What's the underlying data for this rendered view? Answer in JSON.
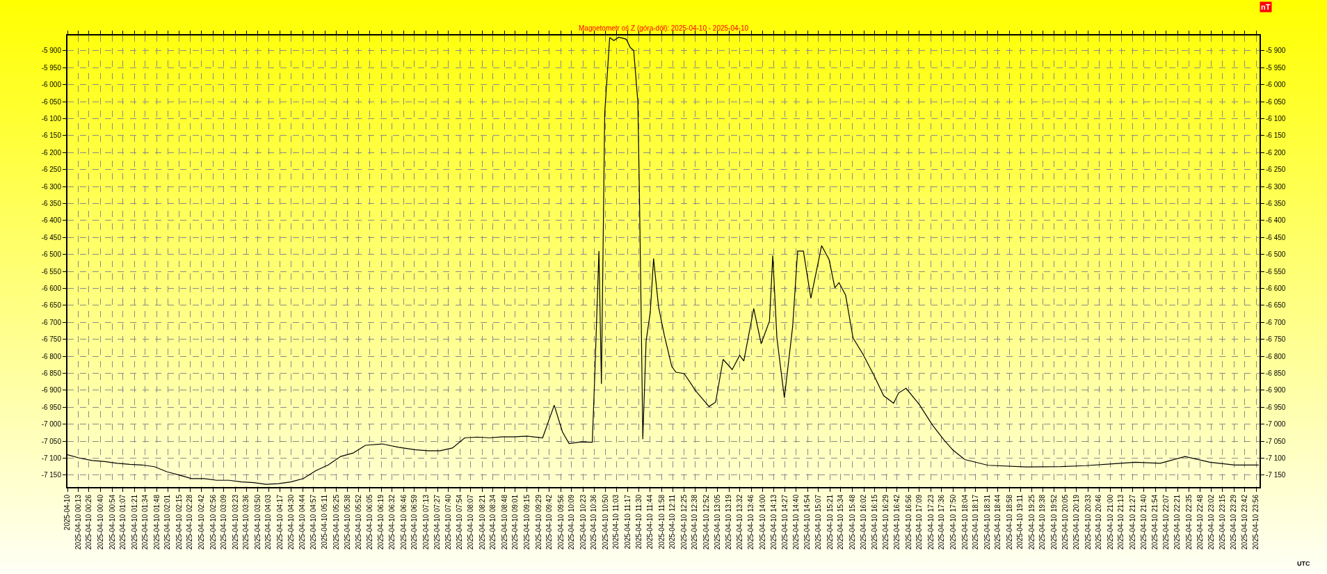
{
  "chart_data": {
    "type": "line",
    "title": "Magnetometr oś Z (góra-dół): 2025-04-10 - 2025-04-10",
    "y2label": "nT",
    "xlabel": "UTC",
    "grid": true,
    "line_style": "solid",
    "x": [
      "2025-04-10T00:00",
      "2025-04-10T00:15",
      "2025-04-10T00:30",
      "2025-04-10T00:45",
      "2025-04-10T01:00",
      "2025-04-10T01:15",
      "2025-04-10T01:30",
      "2025-04-10T01:45",
      "2025-04-10T02:00",
      "2025-04-10T02:15",
      "2025-04-10T02:30",
      "2025-04-10T02:45",
      "2025-04-10T03:00",
      "2025-04-10T03:15",
      "2025-04-10T03:30",
      "2025-04-10T03:45",
      "2025-04-10T04:00",
      "2025-04-10T04:15",
      "2025-04-10T04:30",
      "2025-04-10T04:45",
      "2025-04-10T05:00",
      "2025-04-10T05:15",
      "2025-04-10T05:30",
      "2025-04-10T05:45",
      "2025-04-10T06:00",
      "2025-04-10T06:20",
      "2025-04-10T06:40",
      "2025-04-10T07:00",
      "2025-04-10T07:15",
      "2025-04-10T07:30",
      "2025-04-10T07:45",
      "2025-04-10T08:00",
      "2025-04-10T08:15",
      "2025-04-10T08:30",
      "2025-04-10T08:45",
      "2025-04-10T09:00",
      "2025-04-10T09:15",
      "2025-04-10T09:34",
      "2025-04-10T09:48",
      "2025-04-10T09:58",
      "2025-04-10T10:06",
      "2025-04-10T10:20",
      "2025-04-10T10:34",
      "2025-04-10T10:37",
      "2025-04-10T10:42",
      "2025-04-10T10:45",
      "2025-04-10T10:49",
      "2025-04-10T10:55",
      "2025-04-10T11:00",
      "2025-04-10T11:06",
      "2025-04-10T11:15",
      "2025-04-10T11:20",
      "2025-04-10T11:24",
      "2025-04-10T11:29",
      "2025-04-10T11:31",
      "2025-04-10T11:33",
      "2025-04-10T11:35",
      "2025-04-10T11:39",
      "2025-04-10T11:44",
      "2025-04-10T11:48",
      "2025-04-10T11:54",
      "2025-04-10T12:01",
      "2025-04-10T12:10",
      "2025-04-10T12:15",
      "2025-04-10T12:25",
      "2025-04-10T12:39",
      "2025-04-10T12:55",
      "2025-04-10T13:03",
      "2025-04-10T13:12",
      "2025-04-10T13:23",
      "2025-04-10T13:32",
      "2025-04-10T13:37",
      "2025-04-10T13:49",
      "2025-04-10T13:58",
      "2025-04-10T14:08",
      "2025-04-10T14:12",
      "2025-04-10T14:17",
      "2025-04-10T14:26",
      "2025-04-10T14:36",
      "2025-04-10T14:42",
      "2025-04-10T14:49",
      "2025-04-10T14:58",
      "2025-04-10T15:11",
      "2025-04-10T15:20",
      "2025-04-10T15:27",
      "2025-04-10T15:32",
      "2025-04-10T15:40",
      "2025-04-10T15:49",
      "2025-04-10T16:01",
      "2025-04-10T16:14",
      "2025-04-10T16:26",
      "2025-04-10T16:38",
      "2025-04-10T16:44",
      "2025-04-10T16:53",
      "2025-04-10T17:09",
      "2025-04-10T17:25",
      "2025-04-10T17:39",
      "2025-04-10T17:50",
      "2025-04-10T18:04",
      "2025-04-10T18:32",
      "2025-04-10T19:19",
      "2025-04-10T20:00",
      "2025-04-10T20:30",
      "2025-04-10T21:00",
      "2025-04-10T21:30",
      "2025-04-10T22:00",
      "2025-04-10T22:30",
      "2025-04-10T23:00",
      "2025-04-10T23:30",
      "2025-04-10T23:59"
    ],
    "series": [
      {
        "color": "#000000",
        "values": [
          -7090,
          -7100,
          -7107,
          -7110,
          -7115,
          -7118,
          -7120,
          -7125,
          -7140,
          -7150,
          -7160,
          -7160,
          -7165,
          -7165,
          -7170,
          -7172,
          -7177,
          -7175,
          -7170,
          -7160,
          -7137,
          -7120,
          -7095,
          -7085,
          -7062,
          -7058,
          -7068,
          -7075,
          -7078,
          -7078,
          -7070,
          -7040,
          -7038,
          -7040,
          -7037,
          -7037,
          -7035,
          -7040,
          -6944,
          -7023,
          -7057,
          -7052,
          -7053,
          -6855,
          -6490,
          -6881,
          -6084,
          -5861,
          -5870,
          -5860,
          -5866,
          -5891,
          -5899,
          -6050,
          -6335,
          -6671,
          -7044,
          -6755,
          -6671,
          -6512,
          -6654,
          -6738,
          -6830,
          -6847,
          -6851,
          -6902,
          -6948,
          -6935,
          -6809,
          -6839,
          -6797,
          -6814,
          -6659,
          -6763,
          -6696,
          -6503,
          -6746,
          -6922,
          -6713,
          -6490,
          -6490,
          -6629,
          -6474,
          -6515,
          -6598,
          -6583,
          -6620,
          -6746,
          -6794,
          -6855,
          -6916,
          -6938,
          -6908,
          -6894,
          -6942,
          -7003,
          -7047,
          -7077,
          -7104,
          -7121,
          -7126,
          -7125,
          -7122,
          -7117,
          -7112,
          -7115,
          -7095,
          -7112,
          -7120,
          -7120
        ]
      }
    ],
    "xlim": [
      "2025-04-10T00:00",
      "2025-04-11T00:00"
    ],
    "xticks": [
      {
        "value": "2025-04-10T00:00",
        "label": "2025-04-10"
      },
      {
        "value": "2025-04-10T00:13",
        "label": "2025-04-10 00:13"
      },
      {
        "value": "2025-04-10T00:26",
        "label": "2025-04-10 00:26"
      },
      {
        "value": "2025-04-10T00:40",
        "label": "2025-04-10 00:40"
      },
      {
        "value": "2025-04-10T00:54",
        "label": "2025-04-10 00:54"
      },
      {
        "value": "2025-04-10T01:07",
        "label": "2025-04-10 01:07"
      },
      {
        "value": "2025-04-10T01:21",
        "label": "2025-04-10 01:21"
      },
      {
        "value": "2025-04-10T01:34",
        "label": "2025-04-10 01:34"
      },
      {
        "value": "2025-04-10T01:48",
        "label": "2025-04-10 01:48"
      },
      {
        "value": "2025-04-10T02:01",
        "label": "2025-04-10 02:01"
      },
      {
        "value": "2025-04-10T02:15",
        "label": "2025-04-10 02:15"
      },
      {
        "value": "2025-04-10T02:28",
        "label": "2025-04-10 02:28"
      },
      {
        "value": "2025-04-10T02:42",
        "label": "2025-04-10 02:42"
      },
      {
        "value": "2025-04-10T02:56",
        "label": "2025-04-10 02:56"
      },
      {
        "value": "2025-04-10T03:09",
        "label": "2025-04-10 03:09"
      },
      {
        "value": "2025-04-10T03:23",
        "label": "2025-04-10 03:23"
      },
      {
        "value": "2025-04-10T03:36",
        "label": "2025-04-10 03:36"
      },
      {
        "value": "2025-04-10T03:50",
        "label": "2025-04-10 03:50"
      },
      {
        "value": "2025-04-10T04:03",
        "label": "2025-04-10 04:03"
      },
      {
        "value": "2025-04-10T04:17",
        "label": "2025-04-10 04:17"
      },
      {
        "value": "2025-04-10T04:30",
        "label": "2025-04-10 04:30"
      },
      {
        "value": "2025-04-10T04:44",
        "label": "2025-04-10 04:44"
      },
      {
        "value": "2025-04-10T04:57",
        "label": "2025-04-10 04:57"
      },
      {
        "value": "2025-04-10T05:11",
        "label": "2025-04-10 05:11"
      },
      {
        "value": "2025-04-10T05:25",
        "label": "2025-04-10 05:25"
      },
      {
        "value": "2025-04-10T05:38",
        "label": "2025-04-10 05:38"
      },
      {
        "value": "2025-04-10T05:52",
        "label": "2025-04-10 05:52"
      },
      {
        "value": "2025-04-10T06:05",
        "label": "2025-04-10 06:05"
      },
      {
        "value": "2025-04-10T06:19",
        "label": "2025-04-10 06:19"
      },
      {
        "value": "2025-04-10T06:32",
        "label": "2025-04-10 06:32"
      },
      {
        "value": "2025-04-10T06:46",
        "label": "2025-04-10 06:46"
      },
      {
        "value": "2025-04-10T06:59",
        "label": "2025-04-10 06:59"
      },
      {
        "value": "2025-04-10T07:13",
        "label": "2025-04-10 07:13"
      },
      {
        "value": "2025-04-10T07:27",
        "label": "2025-04-10 07:27"
      },
      {
        "value": "2025-04-10T07:40",
        "label": "2025-04-10 07:40"
      },
      {
        "value": "2025-04-10T07:54",
        "label": "2025-04-10 07:54"
      },
      {
        "value": "2025-04-10T08:07",
        "label": "2025-04-10 08:07"
      },
      {
        "value": "2025-04-10T08:21",
        "label": "2025-04-10 08:21"
      },
      {
        "value": "2025-04-10T08:34",
        "label": "2025-04-10 08:34"
      },
      {
        "value": "2025-04-10T08:48",
        "label": "2025-04-10 08:48"
      },
      {
        "value": "2025-04-10T09:01",
        "label": "2025-04-10 09:01"
      },
      {
        "value": "2025-04-10T09:15",
        "label": "2025-04-10 09:15"
      },
      {
        "value": "2025-04-10T09:29",
        "label": "2025-04-10 09:29"
      },
      {
        "value": "2025-04-10T09:42",
        "label": "2025-04-10 09:42"
      },
      {
        "value": "2025-04-10T09:56",
        "label": "2025-04-10 09:56"
      },
      {
        "value": "2025-04-10T10:09",
        "label": "2025-04-10 10:09"
      },
      {
        "value": "2025-04-10T10:23",
        "label": "2025-04-10 10:23"
      },
      {
        "value": "2025-04-10T10:36",
        "label": "2025-04-10 10:36"
      },
      {
        "value": "2025-04-10T10:50",
        "label": "2025-04-10 10:50"
      },
      {
        "value": "2025-04-10T11:03",
        "label": "2025-04-10 11:03"
      },
      {
        "value": "2025-04-10T11:17",
        "label": "2025-04-10 11:17"
      },
      {
        "value": "2025-04-10T11:30",
        "label": "2025-04-10 11:30"
      },
      {
        "value": "2025-04-10T11:44",
        "label": "2025-04-10 11:44"
      },
      {
        "value": "2025-04-10T11:58",
        "label": "2025-04-10 11:58"
      },
      {
        "value": "2025-04-10T12:11",
        "label": "2025-04-10 12:11"
      },
      {
        "value": "2025-04-10T12:25",
        "label": "2025-04-10 12:25"
      },
      {
        "value": "2025-04-10T12:38",
        "label": "2025-04-10 12:38"
      },
      {
        "value": "2025-04-10T12:52",
        "label": "2025-04-10 12:52"
      },
      {
        "value": "2025-04-10T13:05",
        "label": "2025-04-10 13:05"
      },
      {
        "value": "2025-04-10T13:19",
        "label": "2025-04-10 13:19"
      },
      {
        "value": "2025-04-10T13:32",
        "label": "2025-04-10 13:32"
      },
      {
        "value": "2025-04-10T13:46",
        "label": "2025-04-10 13:46"
      },
      {
        "value": "2025-04-10T14:00",
        "label": "2025-04-10 14:00"
      },
      {
        "value": "2025-04-10T14:13",
        "label": "2025-04-10 14:13"
      },
      {
        "value": "2025-04-10T14:27",
        "label": "2025-04-10 14:27"
      },
      {
        "value": "2025-04-10T14:40",
        "label": "2025-04-10 14:40"
      },
      {
        "value": "2025-04-10T14:54",
        "label": "2025-04-10 14:54"
      },
      {
        "value": "2025-04-10T15:07",
        "label": "2025-04-10 15:07"
      },
      {
        "value": "2025-04-10T15:21",
        "label": "2025-04-10 15:21"
      },
      {
        "value": "2025-04-10T15:34",
        "label": "2025-04-10 15:34"
      },
      {
        "value": "2025-04-10T15:48",
        "label": "2025-04-10 15:48"
      },
      {
        "value": "2025-04-10T16:02",
        "label": "2025-04-10 16:02"
      },
      {
        "value": "2025-04-10T16:15",
        "label": "2025-04-10 16:15"
      },
      {
        "value": "2025-04-10T16:29",
        "label": "2025-04-10 16:29"
      },
      {
        "value": "2025-04-10T16:42",
        "label": "2025-04-10 16:42"
      },
      {
        "value": "2025-04-10T16:56",
        "label": "2025-04-10 16:56"
      },
      {
        "value": "2025-04-10T17:09",
        "label": "2025-04-10 17:09"
      },
      {
        "value": "2025-04-10T17:23",
        "label": "2025-04-10 17:23"
      },
      {
        "value": "2025-04-10T17:36",
        "label": "2025-04-10 17:36"
      },
      {
        "value": "2025-04-10T17:50",
        "label": "2025-04-10 17:50"
      },
      {
        "value": "2025-04-10T18:04",
        "label": "2025-04-10 18:04"
      },
      {
        "value": "2025-04-10T18:17",
        "label": "2025-04-10 18:17"
      },
      {
        "value": "2025-04-10T18:31",
        "label": "2025-04-10 18:31"
      },
      {
        "value": "2025-04-10T18:44",
        "label": "2025-04-10 18:44"
      },
      {
        "value": "2025-04-10T18:58",
        "label": "2025-04-10 18:58"
      },
      {
        "value": "2025-04-10T19:11",
        "label": "2025-04-10 19:11"
      },
      {
        "value": "2025-04-10T19:25",
        "label": "2025-04-10 19:25"
      },
      {
        "value": "2025-04-10T19:38",
        "label": "2025-04-10 19:38"
      },
      {
        "value": "2025-04-10T19:52",
        "label": "2025-04-10 19:52"
      },
      {
        "value": "2025-04-10T20:05",
        "label": "2025-04-10 20:05"
      },
      {
        "value": "2025-04-10T20:19",
        "label": "2025-04-10 20:19"
      },
      {
        "value": "2025-04-10T20:33",
        "label": "2025-04-10 20:33"
      },
      {
        "value": "2025-04-10T20:46",
        "label": "2025-04-10 20:46"
      },
      {
        "value": "2025-04-10T21:00",
        "label": "2025-04-10 21:00"
      },
      {
        "value": "2025-04-10T21:13",
        "label": "2025-04-10 21:13"
      },
      {
        "value": "2025-04-10T21:27",
        "label": "2025-04-10 21:27"
      },
      {
        "value": "2025-04-10T21:40",
        "label": "2025-04-10 21:40"
      },
      {
        "value": "2025-04-10T21:54",
        "label": "2025-04-10 21:54"
      },
      {
        "value": "2025-04-10T22:07",
        "label": "2025-04-10 22:07"
      },
      {
        "value": "2025-04-10T22:21",
        "label": "2025-04-10 22:21"
      },
      {
        "value": "2025-04-10T22:35",
        "label": "2025-04-10 22:35"
      },
      {
        "value": "2025-04-10T22:48",
        "label": "2025-04-10 22:48"
      },
      {
        "value": "2025-04-10T23:02",
        "label": "2025-04-10 23:02"
      },
      {
        "value": "2025-04-10T23:15",
        "label": "2025-04-10 23:15"
      },
      {
        "value": "2025-04-10T23:29",
        "label": "2025-04-10 23:29"
      },
      {
        "value": "2025-04-10T23:42",
        "label": "2025-04-10 23:42"
      },
      {
        "value": "2025-04-10T23:56",
        "label": "2025-04-10 23:56"
      }
    ],
    "ylim": [
      -7185,
      -5855
    ],
    "yticks": [
      {
        "value": -5900,
        "label": "-5 900"
      },
      {
        "value": -5950,
        "label": "-5 950"
      },
      {
        "value": -6000,
        "label": "-6 000"
      },
      {
        "value": -6050,
        "label": "-6 050"
      },
      {
        "value": -6100,
        "label": "-6 100"
      },
      {
        "value": -6150,
        "label": "-6 150"
      },
      {
        "value": -6200,
        "label": "-6 200"
      },
      {
        "value": -6250,
        "label": "-6 250"
      },
      {
        "value": -6300,
        "label": "-6 300"
      },
      {
        "value": -6350,
        "label": "-6 350"
      },
      {
        "value": -6400,
        "label": "-6 400"
      },
      {
        "value": -6450,
        "label": "-6 450"
      },
      {
        "value": -6500,
        "label": "-6 500"
      },
      {
        "value": -6550,
        "label": "-6 550"
      },
      {
        "value": -6600,
        "label": "-6 600"
      },
      {
        "value": -6650,
        "label": "-6 650"
      },
      {
        "value": -6700,
        "label": "-6 700"
      },
      {
        "value": -6750,
        "label": "-6 750"
      },
      {
        "value": -6800,
        "label": "-6 800"
      },
      {
        "value": -6850,
        "label": "-6 850"
      },
      {
        "value": -6900,
        "label": "-6 900"
      },
      {
        "value": -6950,
        "label": "-6 950"
      },
      {
        "value": -7000,
        "label": "-7 000"
      },
      {
        "value": -7050,
        "label": "-7 050"
      },
      {
        "value": -7100,
        "label": "-7 100"
      },
      {
        "value": -7150,
        "label": "-7 150"
      }
    ],
    "y2lim": [
      -7185,
      -5855
    ],
    "y2ticks": [
      {
        "value": -5900,
        "label": "-5 900"
      },
      {
        "value": -5950,
        "label": "-5 950"
      },
      {
        "value": -6000,
        "label": "-6 000"
      },
      {
        "value": -6050,
        "label": "-6 050"
      },
      {
        "value": -6100,
        "label": "-6 100"
      },
      {
        "value": -6150,
        "label": "-6 150"
      },
      {
        "value": -6200,
        "label": "-6 200"
      },
      {
        "value": -6250,
        "label": "-6 250"
      },
      {
        "value": -6300,
        "label": "-6 300"
      },
      {
        "value": -6350,
        "label": "-6 350"
      },
      {
        "value": -6400,
        "label": "-6 400"
      },
      {
        "value": -6450,
        "label": "-6 450"
      },
      {
        "value": -6500,
        "label": "-6 500"
      },
      {
        "value": -6550,
        "label": "-6 550"
      },
      {
        "value": -6600,
        "label": "-6 600"
      },
      {
        "value": -6650,
        "label": "-6 650"
      },
      {
        "value": -6700,
        "label": "-6 700"
      },
      {
        "value": -6750,
        "label": "-6 750"
      },
      {
        "value": -6800,
        "label": "-6 800"
      },
      {
        "value": -6850,
        "label": "-6 850"
      },
      {
        "value": -6900,
        "label": "-6 900"
      },
      {
        "value": -6950,
        "label": "-6 950"
      },
      {
        "value": -7000,
        "label": "-7 000"
      },
      {
        "value": -7050,
        "label": "-7 050"
      },
      {
        "value": -7100,
        "label": "-7 100"
      },
      {
        "value": -7150,
        "label": "-7 150"
      }
    ]
  }
}
